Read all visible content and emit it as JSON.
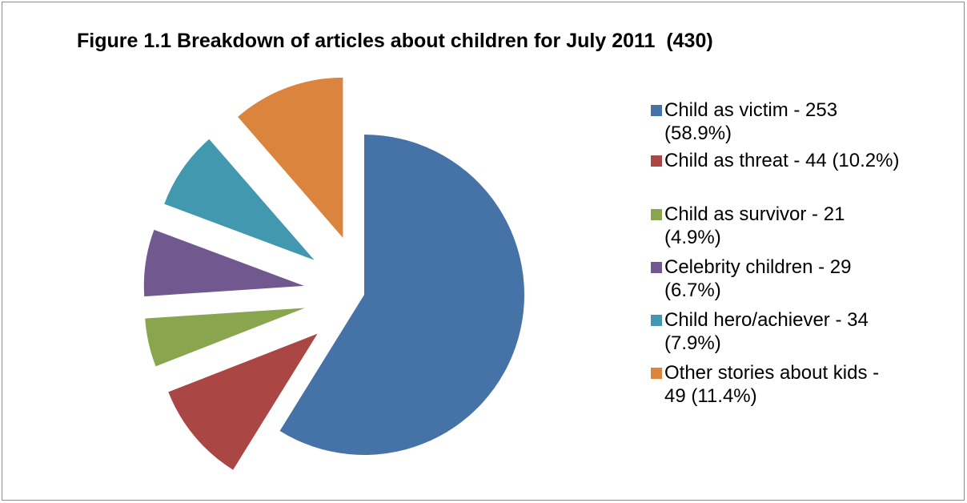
{
  "chart_data": {
    "type": "pie",
    "title": "Figure 1.1 Breakdown of articles about children for July 2011  (430)",
    "slices": [
      {
        "label": "Child as victim - 253\n(58.9%)",
        "value": 253,
        "color": "#4572A7",
        "exploded": false
      },
      {
        "label": "Child as threat  - 44 (10.2%)",
        "value": 44,
        "color": "#AA4643",
        "exploded": true
      },
      {
        "label": "Child as survivor - 21\n(4.9%)",
        "value": 21,
        "color": "#89A54E",
        "exploded": true
      },
      {
        "label": "Celebrity children - 29\n(6.7%)",
        "value": 29,
        "color": "#71588F",
        "exploded": true
      },
      {
        "label": "Child hero/achiever - 34\n(7.9%)",
        "value": 34,
        "color": "#4198AF",
        "exploded": true
      },
      {
        "label": "Other stories about kids -\n49 (11.4%)",
        "value": 49,
        "color": "#DB843D",
        "exploded": true
      }
    ],
    "start_angle": "12 o'clock",
    "direction": "clockwise",
    "legend_position": "right"
  }
}
